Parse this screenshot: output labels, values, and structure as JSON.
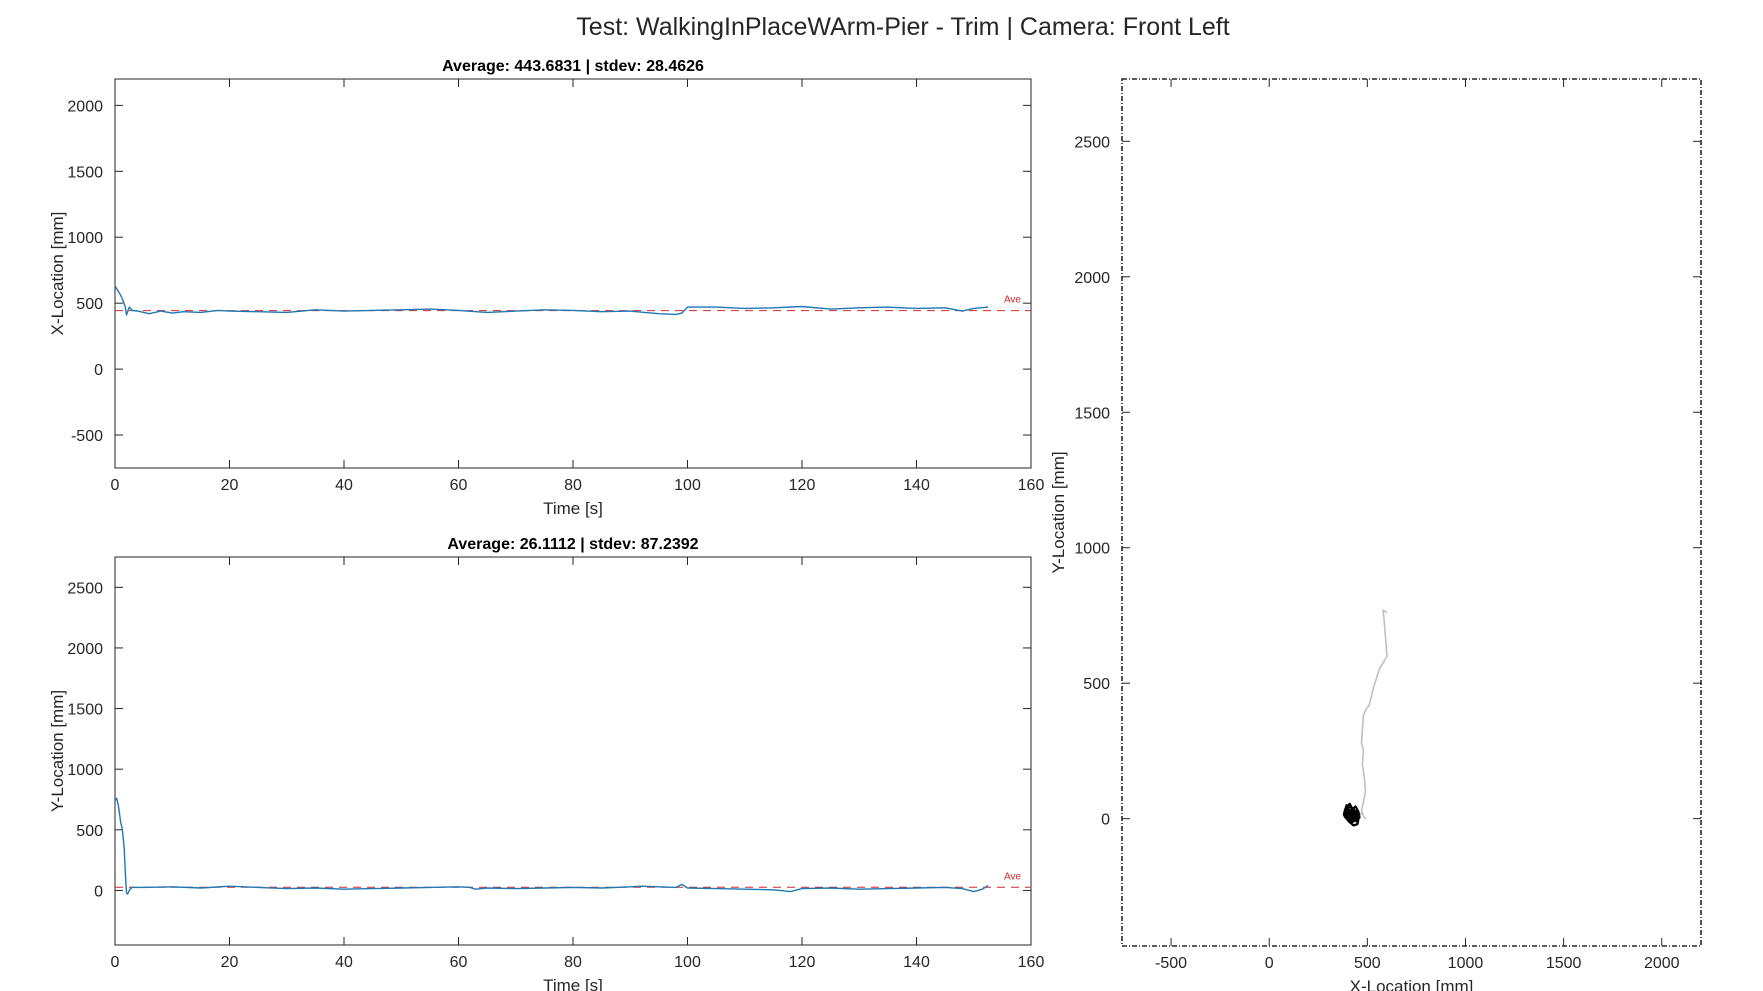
{
  "figure": {
    "title": "Test: WalkingInPlaceWArm-Pier - Trim  |  Camera: Front Left"
  },
  "colors": {
    "series": "#1f77b4",
    "average": "#d62728",
    "trajectory": "#c0c0c0",
    "trajectory_dense": "#000000",
    "axes": "#262626"
  },
  "chart_data": [
    {
      "type": "line",
      "title": "Average: 443.6831  |  stdev: 28.4626",
      "xlabel": "Time [s]",
      "ylabel": "X-Location [mm]",
      "xlim": [
        0,
        160
      ],
      "ylim": [
        -750,
        2200
      ],
      "xticks": [
        0,
        20,
        40,
        60,
        80,
        100,
        120,
        140,
        160
      ],
      "yticks": [
        -500,
        0,
        500,
        1000,
        1500,
        2000
      ],
      "average": 443.6831,
      "average_label": "Ave",
      "series": [
        {
          "x": [
            0,
            0.3,
            0.6,
            1.0,
            1.4,
            1.8,
            2.0,
            2.5,
            3,
            4,
            5,
            6,
            8,
            10,
            12,
            15,
            18,
            20,
            25,
            30,
            35,
            40,
            45,
            50,
            55,
            60,
            65,
            70,
            75,
            80,
            85,
            90,
            95,
            98,
            99,
            100,
            105,
            110,
            115,
            120,
            125,
            130,
            135,
            140,
            145,
            148,
            150,
            152.5
          ],
          "y": [
            630,
            610,
            590,
            560,
            520,
            470,
            410,
            470,
            445,
            440,
            430,
            420,
            440,
            425,
            435,
            430,
            445,
            440,
            435,
            430,
            450,
            440,
            445,
            450,
            455,
            445,
            430,
            440,
            450,
            445,
            435,
            440,
            420,
            415,
            425,
            470,
            470,
            460,
            465,
            475,
            455,
            465,
            470,
            460,
            465,
            440,
            460,
            470
          ]
        }
      ]
    },
    {
      "type": "line",
      "title": "Average: 26.1112  |  stdev: 87.2392",
      "xlabel": "Time [s]",
      "ylabel": "Y-Location [mm]",
      "xlim": [
        0,
        160
      ],
      "ylim": [
        -450,
        2750
      ],
      "xticks": [
        0,
        20,
        40,
        60,
        80,
        100,
        120,
        140,
        160
      ],
      "yticks": [
        0,
        500,
        1000,
        1500,
        2000,
        2500
      ],
      "average": 26.1112,
      "average_label": "Ave",
      "series": [
        {
          "x": [
            0,
            0.3,
            0.6,
            1.0,
            1.3,
            1.6,
            1.8,
            2.0,
            2.2,
            2.6,
            3.0,
            5,
            10,
            15,
            20,
            25,
            30,
            35,
            40,
            45,
            50,
            55,
            60,
            62,
            63,
            65,
            70,
            75,
            80,
            85,
            90,
            92,
            95,
            98,
            99,
            100,
            105,
            110,
            115,
            118,
            120,
            125,
            130,
            135,
            140,
            145,
            148,
            150,
            151.5,
            152.5
          ],
          "y": [
            740,
            760,
            700,
            560,
            500,
            350,
            150,
            -20,
            -30,
            10,
            25,
            25,
            30,
            20,
            35,
            25,
            15,
            20,
            10,
            15,
            20,
            25,
            30,
            25,
            10,
            20,
            15,
            20,
            25,
            20,
            30,
            35,
            30,
            25,
            50,
            20,
            15,
            10,
            5,
            -10,
            15,
            20,
            10,
            15,
            20,
            25,
            15,
            -10,
            10,
            40
          ]
        }
      ]
    },
    {
      "type": "line",
      "title": "",
      "xlabel": "X-Location [mm]",
      "ylabel": "Y-Location [mm]",
      "xlim": [
        -750,
        2200
      ],
      "ylim": [
        -470,
        2730
      ],
      "xticks": [
        -500,
        0,
        500,
        1000,
        1500,
        2000
      ],
      "yticks": [
        0,
        500,
        1000,
        1500,
        2000,
        2500
      ],
      "series": [
        {
          "x": [
            600,
            580,
            585,
            600,
            560,
            530,
            510,
            490,
            480,
            475,
            470,
            480,
            475,
            485,
            490,
            480,
            470,
            480,
            490,
            470,
            440,
            430,
            420,
            410,
            400
          ],
          "y": [
            760,
            770,
            740,
            600,
            550,
            480,
            420,
            400,
            380,
            330,
            280,
            250,
            200,
            150,
            100,
            60,
            30,
            10,
            0,
            20,
            5,
            -10,
            20,
            0,
            10
          ]
        },
        {
          "x": [
            380,
            395,
            410,
            425,
            440,
            455,
            460,
            445,
            430,
            415,
            400,
            390,
            385,
            395,
            420,
            440,
            455,
            450,
            430,
            405,
            390,
            380,
            395,
            415,
            435,
            448,
            440,
            420,
            400,
            388
          ],
          "y": [
            20,
            40,
            55,
            35,
            45,
            25,
            5,
            -10,
            0,
            -15,
            -5,
            10,
            30,
            50,
            40,
            20,
            0,
            -20,
            -25,
            -10,
            5,
            15,
            35,
            45,
            30,
            10,
            -5,
            -15,
            0,
            20
          ]
        }
      ]
    }
  ]
}
